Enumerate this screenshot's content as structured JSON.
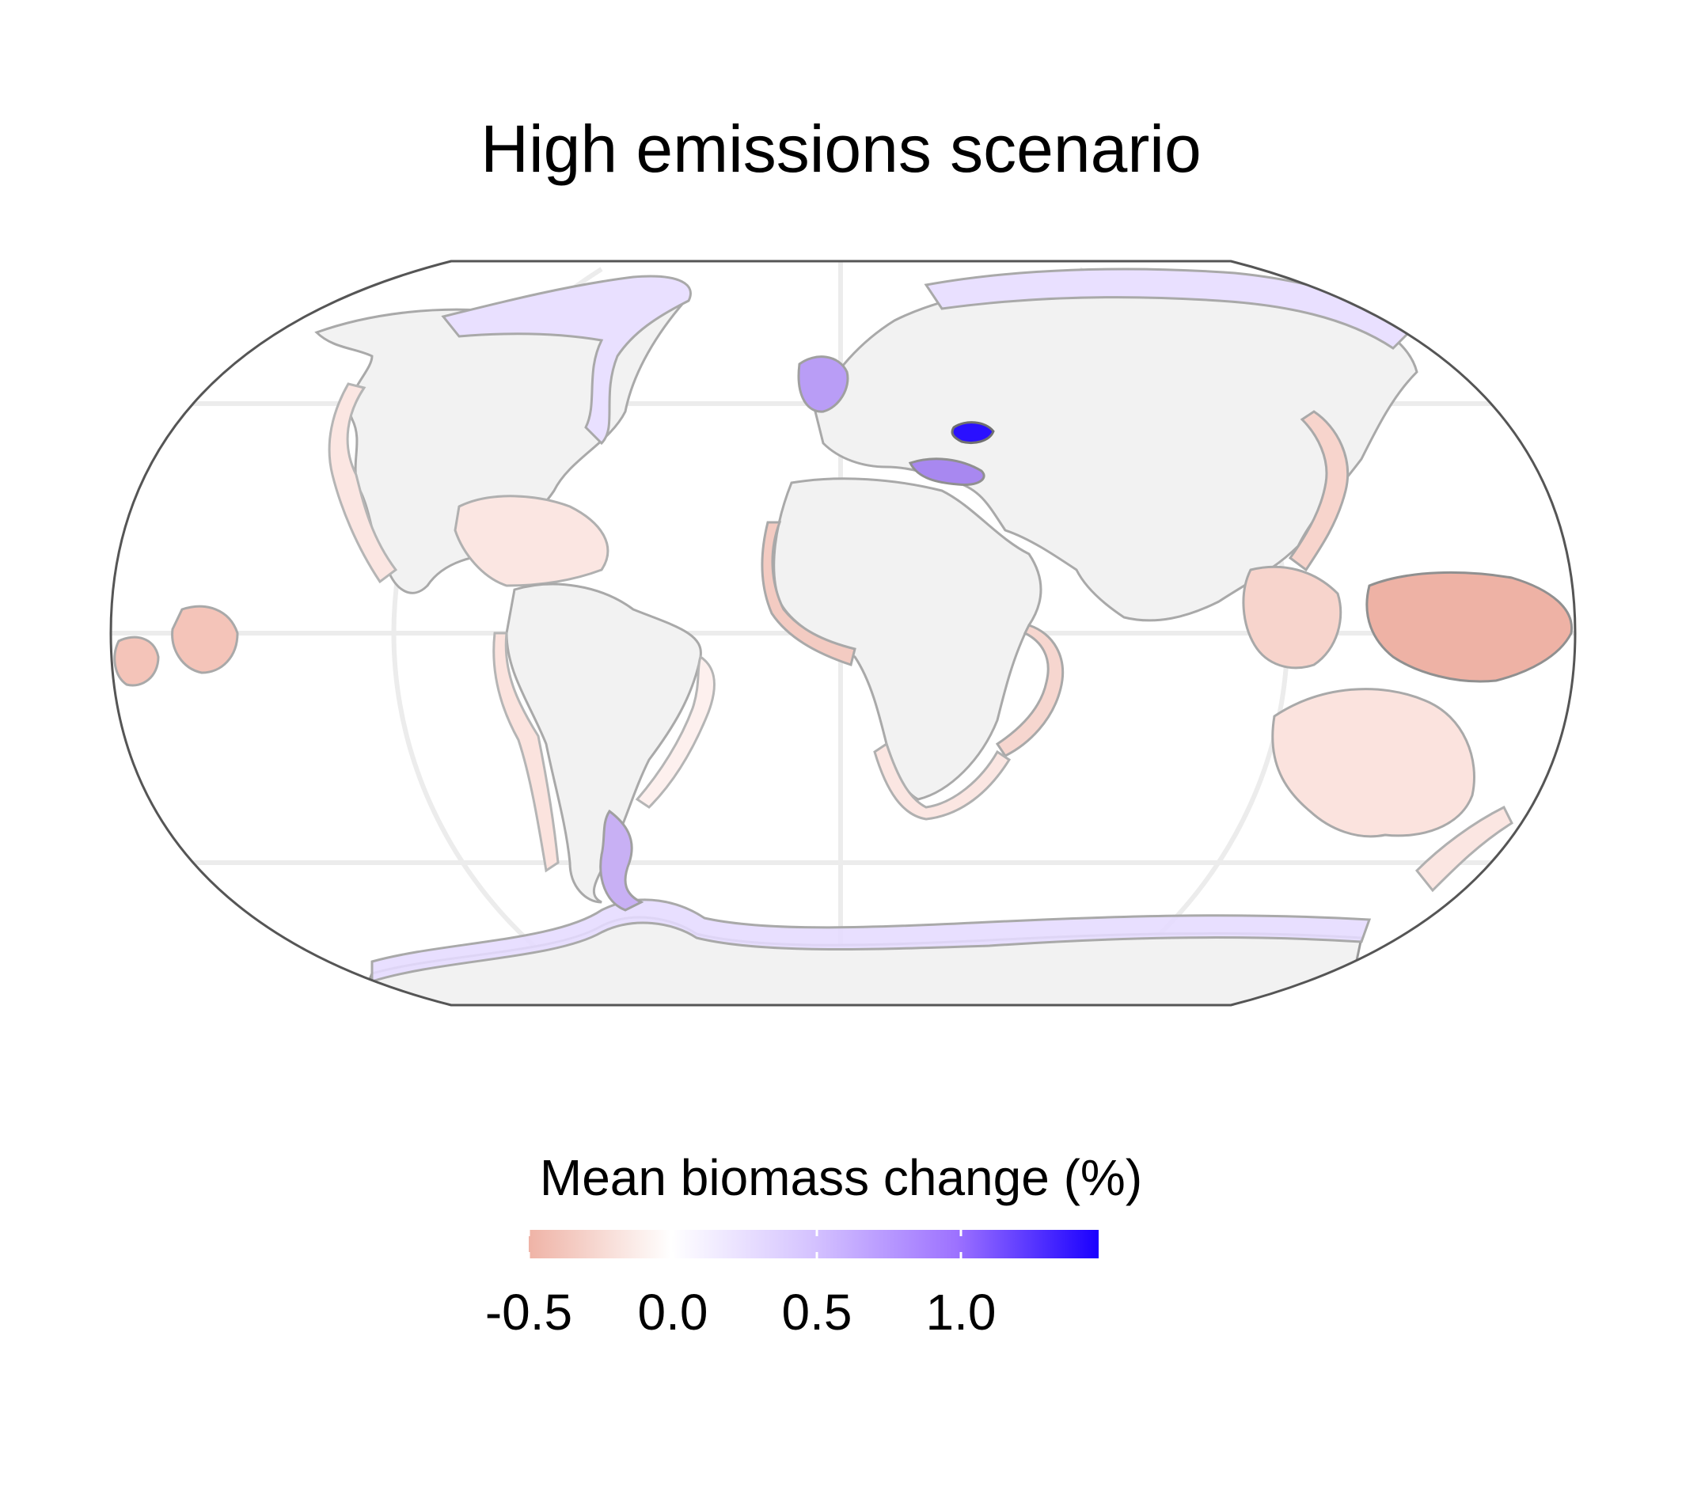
{
  "title": "High emissions scenario",
  "legend": {
    "title": "Mean biomass change (%)",
    "ticks": [
      "-0.5",
      "0.0",
      "0.5",
      "1.0"
    ],
    "tick_values": [
      -0.5,
      0.0,
      0.5,
      1.0
    ],
    "range": [
      -0.5,
      1.5
    ],
    "colors": {
      "low": "#efb3a6",
      "mid": "#ffffff",
      "high": "#1a00ff"
    }
  },
  "map": {
    "projection": "robinson",
    "land_color": "#f2f2f2",
    "border_color": "#999999",
    "graticule_color": "#ececec"
  }
}
